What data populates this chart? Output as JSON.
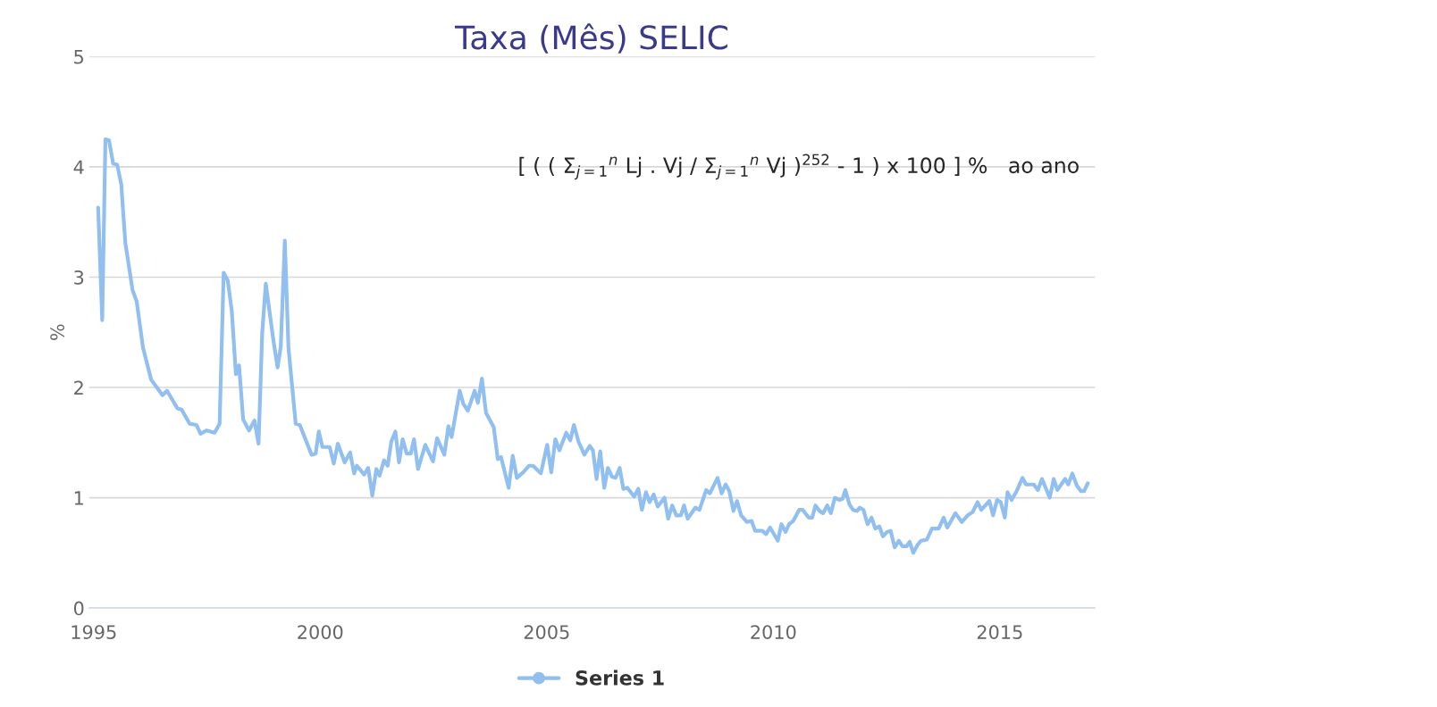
{
  "chart_data": {
    "type": "line",
    "title": "Taxa (Mês) SELIC",
    "ylabel": "%",
    "annotations": [
      "[ ( ( Σ$_{j=1}$$^{n}$ Lj . Vj / Σ$_{j=1}$$^{n}$ Vj )$^{252}$ - 1 ) x 100 ] %   ao ano"
    ],
    "xlim": [
      1994.9,
      2017.1
    ],
    "xticks": [
      1995,
      2000,
      2005,
      2010,
      2015
    ],
    "ylim": [
      0,
      5
    ],
    "yticks": [
      0,
      1,
      2,
      3,
      4,
      5
    ],
    "grid": "y",
    "legend": "bottom",
    "series": [
      {
        "name": "Series 1",
        "color": "#90bff0",
        "x": [
          1995.1,
          1995.19,
          1995.26,
          1995.34,
          1995.43,
          1995.52,
          1995.61,
          1995.7,
          1995.86,
          1995.95,
          1996.09,
          1996.27,
          1996.45,
          1996.52,
          1996.62,
          1996.85,
          1996.94,
          1997.12,
          1997.27,
          1997.36,
          1997.49,
          1997.67,
          1997.78,
          1997.87,
          1997.96,
          1998.05,
          1998.14,
          1998.21,
          1998.3,
          1998.43,
          1998.55,
          1998.64,
          1998.72,
          1998.8,
          1998.97,
          1999.06,
          1999.13,
          1999.22,
          1999.3,
          1999.46,
          1999.55,
          1999.81,
          1999.9,
          1999.97,
          2000.05,
          2000.21,
          2000.3,
          2000.39,
          2000.54,
          2000.66,
          2000.75,
          2000.81,
          2000.97,
          2001.06,
          2001.15,
          2001.24,
          2001.31,
          2001.41,
          2001.49,
          2001.57,
          2001.66,
          2001.74,
          2001.82,
          2001.91,
          2002.0,
          2002.07,
          2002.16,
          2002.32,
          2002.49,
          2002.58,
          2002.74,
          2002.83,
          2002.9,
          2003.08,
          2003.16,
          2003.26,
          2003.41,
          2003.48,
          2003.57,
          2003.66,
          2003.83,
          2003.92,
          2003.99,
          2004.16,
          2004.25,
          2004.34,
          2004.48,
          2004.61,
          2004.7,
          2004.87,
          2005.01,
          2005.1,
          2005.19,
          2005.28,
          2005.43,
          2005.52,
          2005.6,
          2005.7,
          2005.83,
          2005.95,
          2006.02,
          2006.1,
          2006.18,
          2006.27,
          2006.35,
          2006.44,
          2006.52,
          2006.61,
          2006.69,
          2006.78,
          2006.93,
          2007.02,
          2007.1,
          2007.19,
          2007.27,
          2007.36,
          2007.45,
          2007.6,
          2007.68,
          2007.77,
          2007.86,
          2007.96,
          2008.03,
          2008.11,
          2008.28,
          2008.37,
          2008.52,
          2008.6,
          2008.77,
          2008.86,
          2008.95,
          2009.03,
          2009.12,
          2009.2,
          2009.29,
          2009.42,
          2009.52,
          2009.6,
          2009.76,
          2009.84,
          2009.93,
          2010.1,
          2010.18,
          2010.27,
          2010.35,
          2010.44,
          2010.57,
          2010.65,
          2010.78,
          2010.86,
          2010.93,
          2011.02,
          2011.1,
          2011.19,
          2011.27,
          2011.36,
          2011.46,
          2011.53,
          2011.59,
          2011.68,
          2011.76,
          2011.85,
          2011.91,
          2011.99,
          2012.08,
          2012.17,
          2012.25,
          2012.34,
          2012.42,
          2012.51,
          2012.59,
          2012.68,
          2012.77,
          2012.85,
          2012.94,
          2013.01,
          2013.09,
          2013.18,
          2013.26,
          2013.39,
          2013.5,
          2013.65,
          2013.76,
          2013.84,
          2014.02,
          2014.16,
          2014.29,
          2014.4,
          2014.51,
          2014.59,
          2014.77,
          2014.85,
          2014.94,
          2015.02,
          2015.11,
          2015.17,
          2015.26,
          2015.37,
          2015.5,
          2015.58,
          2015.75,
          2015.84,
          2015.93,
          2016.1,
          2016.19,
          2016.27,
          2016.44,
          2016.51,
          2016.6,
          2016.7,
          2016.79,
          2016.86,
          2016.94
        ],
        "values": [
          3.63,
          2.61,
          4.25,
          4.24,
          4.03,
          4.02,
          3.84,
          3.31,
          2.88,
          2.78,
          2.36,
          2.07,
          1.97,
          1.93,
          1.97,
          1.81,
          1.8,
          1.67,
          1.66,
          1.58,
          1.61,
          1.59,
          1.67,
          3.04,
          2.97,
          2.69,
          2.12,
          2.2,
          1.71,
          1.61,
          1.7,
          1.49,
          2.49,
          2.94,
          2.42,
          2.18,
          2.37,
          3.33,
          2.36,
          1.67,
          1.66,
          1.39,
          1.4,
          1.6,
          1.46,
          1.46,
          1.31,
          1.49,
          1.32,
          1.41,
          1.22,
          1.29,
          1.21,
          1.27,
          1.02,
          1.26,
          1.2,
          1.34,
          1.29,
          1.51,
          1.6,
          1.32,
          1.53,
          1.4,
          1.4,
          1.53,
          1.26,
          1.48,
          1.33,
          1.54,
          1.39,
          1.65,
          1.55,
          1.97,
          1.85,
          1.79,
          1.97,
          1.86,
          2.08,
          1.77,
          1.64,
          1.35,
          1.37,
          1.09,
          1.38,
          1.18,
          1.23,
          1.29,
          1.29,
          1.22,
          1.48,
          1.23,
          1.53,
          1.43,
          1.59,
          1.52,
          1.66,
          1.51,
          1.39,
          1.47,
          1.43,
          1.17,
          1.42,
          1.09,
          1.27,
          1.19,
          1.18,
          1.27,
          1.08,
          1.09,
          1.01,
          1.08,
          0.89,
          1.05,
          0.96,
          1.03,
          0.92,
          1.0,
          0.81,
          0.93,
          0.84,
          0.84,
          0.93,
          0.81,
          0.91,
          0.89,
          1.07,
          1.04,
          1.18,
          1.04,
          1.12,
          1.06,
          0.88,
          0.97,
          0.84,
          0.78,
          0.79,
          0.7,
          0.7,
          0.67,
          0.73,
          0.61,
          0.76,
          0.69,
          0.76,
          0.79,
          0.89,
          0.89,
          0.82,
          0.82,
          0.93,
          0.88,
          0.86,
          0.93,
          0.86,
          1.0,
          0.98,
          0.99,
          1.07,
          0.94,
          0.89,
          0.88,
          0.91,
          0.89,
          0.76,
          0.82,
          0.72,
          0.74,
          0.65,
          0.69,
          0.7,
          0.55,
          0.61,
          0.56,
          0.56,
          0.6,
          0.5,
          0.57,
          0.61,
          0.62,
          0.72,
          0.72,
          0.82,
          0.73,
          0.86,
          0.78,
          0.84,
          0.87,
          0.96,
          0.89,
          0.97,
          0.84,
          0.98,
          0.96,
          0.82,
          1.05,
          0.98,
          1.06,
          1.18,
          1.12,
          1.12,
          1.07,
          1.17,
          1.0,
          1.17,
          1.07,
          1.17,
          1.12,
          1.22,
          1.11,
          1.06,
          1.06,
          1.13
        ]
      }
    ]
  }
}
